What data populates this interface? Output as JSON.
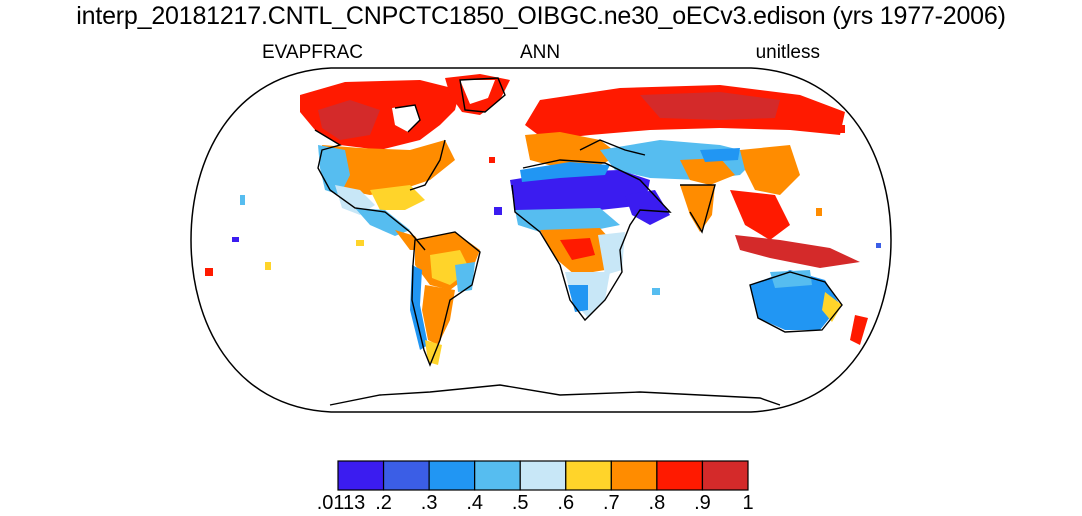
{
  "title": "interp_20181217.CNTL_CNPCTC1850_OIBGC.ne30_oECv3.edison (yrs 1977-2006)",
  "labels": {
    "left": "EVAPFRAC",
    "center": "ANN",
    "right": "unitless"
  },
  "map_data": {
    "projection": "robinson",
    "variable": "EVAPFRAC",
    "season": "ANN",
    "units": "unitless",
    "colorbar": {
      "colors": [
        "#3b1cf0",
        "#3b5ee6",
        "#2196f3",
        "#56bdf0",
        "#c8e7f7",
        "#ffd42a",
        "#ff8c00",
        "#ff1a00",
        "#d42a2a"
      ],
      "tick_labels": [
        ".0113",
        ".2",
        ".3",
        ".4",
        ".5",
        ".6",
        ".7",
        ".8",
        ".9",
        "1"
      ]
    }
  }
}
